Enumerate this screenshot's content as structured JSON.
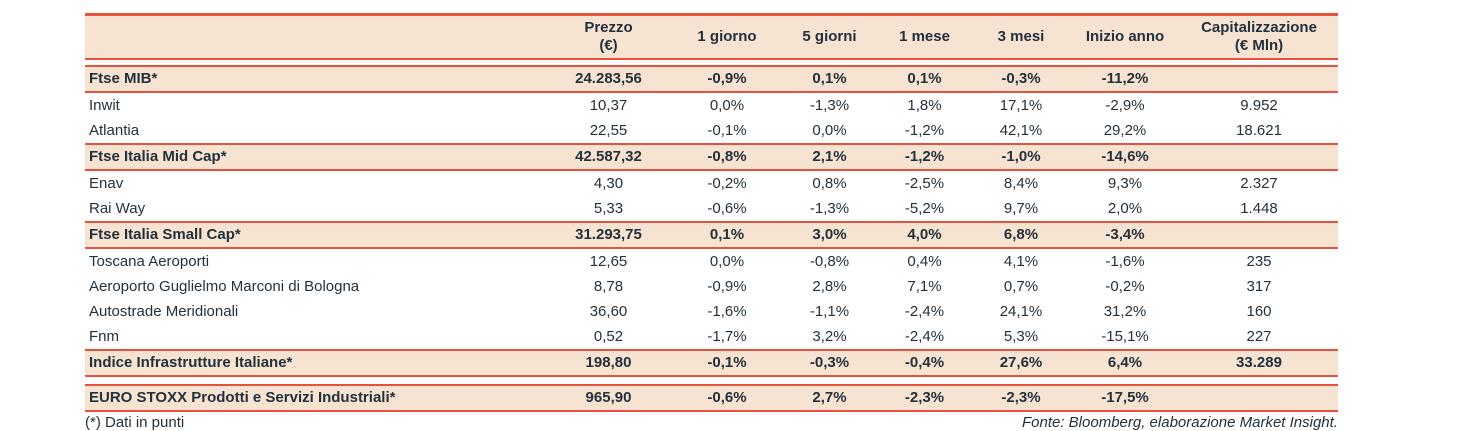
{
  "colors": {
    "accent_red": "#e8523c",
    "band_peach": "#f7e3d1",
    "text_dark": "#23313c"
  },
  "table": {
    "headers": [
      "",
      "Prezzo\n(€)",
      "1 giorno",
      "5 giorni",
      "1 mese",
      "3 mesi",
      "Inizio anno",
      "Capitalizzazione\n(€ Mln)"
    ],
    "rows": [
      {
        "kind": "section",
        "gap_before": false,
        "cells": [
          "Ftse MIB*",
          "24.283,56",
          "-0,9%",
          "0,1%",
          "0,1%",
          "-0,3%",
          "-11,2%",
          ""
        ]
      },
      {
        "kind": "stock",
        "gap_before": false,
        "cells": [
          "Inwit",
          "10,37",
          "0,0%",
          "-1,3%",
          "1,8%",
          "17,1%",
          "-2,9%",
          "9.952"
        ]
      },
      {
        "kind": "stock",
        "gap_before": false,
        "cells": [
          "Atlantia",
          "22,55",
          "-0,1%",
          "0,0%",
          "-1,2%",
          "42,1%",
          "29,2%",
          "18.621"
        ]
      },
      {
        "kind": "section",
        "gap_before": false,
        "cells": [
          "Ftse Italia Mid Cap*",
          "42.587,32",
          "-0,8%",
          "2,1%",
          "-1,2%",
          "-1,0%",
          "-14,6%",
          ""
        ]
      },
      {
        "kind": "stock",
        "gap_before": false,
        "cells": [
          "Enav",
          "4,30",
          "-0,2%",
          "0,8%",
          "-2,5%",
          "8,4%",
          "9,3%",
          "2.327"
        ]
      },
      {
        "kind": "stock",
        "gap_before": false,
        "cells": [
          "Rai Way",
          "5,33",
          "-0,6%",
          "-1,3%",
          "-5,2%",
          "9,7%",
          "2,0%",
          "1.448"
        ]
      },
      {
        "kind": "section",
        "gap_before": false,
        "cells": [
          "Ftse Italia Small Cap*",
          "31.293,75",
          "0,1%",
          "3,0%",
          "4,0%",
          "6,8%",
          "-3,4%",
          ""
        ]
      },
      {
        "kind": "stock",
        "gap_before": false,
        "cells": [
          "Toscana Aeroporti",
          "12,65",
          "0,0%",
          "-0,8%",
          "0,4%",
          "4,1%",
          "-1,6%",
          "235"
        ]
      },
      {
        "kind": "stock",
        "gap_before": false,
        "cells": [
          "Aeroporto Guglielmo Marconi di Bologna",
          "8,78",
          "-0,9%",
          "2,8%",
          "7,1%",
          "0,7%",
          "-0,2%",
          "317"
        ]
      },
      {
        "kind": "stock",
        "gap_before": false,
        "cells": [
          "Autostrade Meridionali",
          "36,60",
          "-1,6%",
          "-1,1%",
          "-2,4%",
          "24,1%",
          "31,2%",
          "160"
        ]
      },
      {
        "kind": "stock",
        "gap_before": false,
        "cells": [
          "Fnm",
          "0,52",
          "-1,7%",
          "3,2%",
          "-2,4%",
          "5,3%",
          "-15,1%",
          "227"
        ]
      },
      {
        "kind": "section",
        "gap_before": false,
        "cells": [
          "Indice Infrastrutture Italiane*",
          "198,80",
          "-0,1%",
          "-0,3%",
          "-0,4%",
          "27,6%",
          "6,4%",
          "33.289"
        ]
      },
      {
        "kind": "section",
        "gap_before": true,
        "cells": [
          "EURO STOXX Prodotti e Servizi Industriali*",
          "965,90",
          "-0,6%",
          "2,7%",
          "-2,3%",
          "-2,3%",
          "-17,5%",
          ""
        ]
      }
    ]
  },
  "footer": {
    "footnote": "(*) Dati in punti",
    "source": "Fonte: Bloomberg, elaborazione Market Insight."
  }
}
